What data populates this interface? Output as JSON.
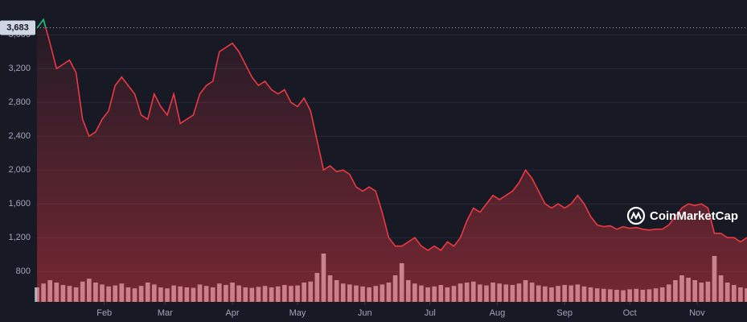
{
  "chart_data": {
    "type": "line",
    "watermark": "CoinMarketCap",
    "reference": {
      "value": 3683,
      "label": "3,683"
    },
    "xlim": [
      0,
      327
    ],
    "xticks": [
      {
        "value": 31,
        "label": "Feb"
      },
      {
        "value": 59,
        "label": "Mar"
      },
      {
        "value": 90,
        "label": "Apr"
      },
      {
        "value": 120,
        "label": "May"
      },
      {
        "value": 151,
        "label": "Jun"
      },
      {
        "value": 181,
        "label": "Jul"
      },
      {
        "value": 212,
        "label": "Aug"
      },
      {
        "value": 243,
        "label": "Sep"
      },
      {
        "value": 273,
        "label": "Oct"
      },
      {
        "value": 304,
        "label": "Nov"
      }
    ],
    "ylim": [
      440,
      3840
    ],
    "yticks": [
      {
        "value": 800,
        "label": "800"
      },
      {
        "value": 1200,
        "label": "1,200"
      },
      {
        "value": 1600,
        "label": "1,600"
      },
      {
        "value": 2000,
        "label": "2,000"
      },
      {
        "value": 2400,
        "label": "2,400"
      },
      {
        "value": 2800,
        "label": "2,800"
      },
      {
        "value": 3200,
        "label": "3,200"
      },
      {
        "value": 3600,
        "label": "3,600"
      }
    ],
    "x": [
      0,
      3,
      6,
      9,
      12,
      15,
      18,
      21,
      24,
      27,
      30,
      33,
      36,
      39,
      42,
      45,
      48,
      51,
      54,
      57,
      60,
      63,
      66,
      69,
      72,
      75,
      78,
      81,
      84,
      87,
      90,
      93,
      96,
      99,
      102,
      105,
      108,
      111,
      114,
      117,
      120,
      123,
      126,
      129,
      132,
      135,
      138,
      141,
      144,
      147,
      150,
      153,
      156,
      159,
      162,
      165,
      168,
      171,
      174,
      177,
      180,
      183,
      186,
      189,
      192,
      195,
      198,
      201,
      204,
      207,
      210,
      213,
      216,
      219,
      222,
      225,
      228,
      231,
      234,
      237,
      240,
      243,
      246,
      249,
      252,
      255,
      258,
      261,
      264,
      267,
      270,
      273,
      276,
      279,
      282,
      285,
      288,
      291,
      294,
      297,
      300,
      303,
      306,
      309,
      312,
      315,
      318,
      321,
      324,
      327
    ],
    "series": [
      {
        "color": "#ea3943",
        "color_above": "#16c784",
        "values": [
          3680,
          3780,
          3500,
          3200,
          3250,
          3300,
          3150,
          2600,
          2400,
          2450,
          2600,
          2700,
          3000,
          3100,
          3000,
          2900,
          2650,
          2600,
          2900,
          2750,
          2650,
          2900,
          2550,
          2600,
          2650,
          2900,
          3000,
          3050,
          3400,
          3450,
          3500,
          3400,
          3250,
          3100,
          3000,
          3050,
          2950,
          2900,
          2950,
          2800,
          2750,
          2850,
          2700,
          2350,
          2000,
          2050,
          1980,
          2000,
          1950,
          1800,
          1750,
          1800,
          1750,
          1500,
          1200,
          1100,
          1100,
          1150,
          1200,
          1100,
          1050,
          1100,
          1050,
          1150,
          1100,
          1200,
          1400,
          1550,
          1500,
          1600,
          1700,
          1650,
          1700,
          1750,
          1850,
          2000,
          1900,
          1750,
          1600,
          1550,
          1600,
          1550,
          1600,
          1700,
          1600,
          1450,
          1350,
          1330,
          1340,
          1300,
          1330,
          1310,
          1320,
          1300,
          1290,
          1300,
          1300,
          1350,
          1450,
          1550,
          1600,
          1580,
          1600,
          1550,
          1250,
          1250,
          1200,
          1200,
          1150,
          1200
        ]
      }
    ],
    "volume": {
      "color": "#cfd2dc",
      "values": [
        30,
        38,
        45,
        40,
        35,
        33,
        30,
        42,
        48,
        40,
        36,
        32,
        34,
        38,
        30,
        28,
        33,
        40,
        36,
        30,
        28,
        34,
        32,
        30,
        29,
        36,
        33,
        30,
        38,
        35,
        40,
        34,
        30,
        29,
        31,
        33,
        30,
        32,
        35,
        33,
        34,
        40,
        42,
        60,
        100,
        55,
        45,
        38,
        36,
        34,
        32,
        30,
        33,
        36,
        40,
        55,
        80,
        45,
        38,
        34,
        30,
        32,
        35,
        30,
        33,
        38,
        40,
        42,
        36,
        34,
        40,
        38,
        36,
        35,
        38,
        45,
        40,
        34,
        32,
        30,
        33,
        35,
        34,
        36,
        32,
        30,
        28,
        27,
        26,
        25,
        24,
        26,
        27,
        25,
        26,
        28,
        30,
        36,
        45,
        55,
        50,
        45,
        40,
        42,
        95,
        55,
        40,
        35,
        30,
        28
      ]
    }
  }
}
